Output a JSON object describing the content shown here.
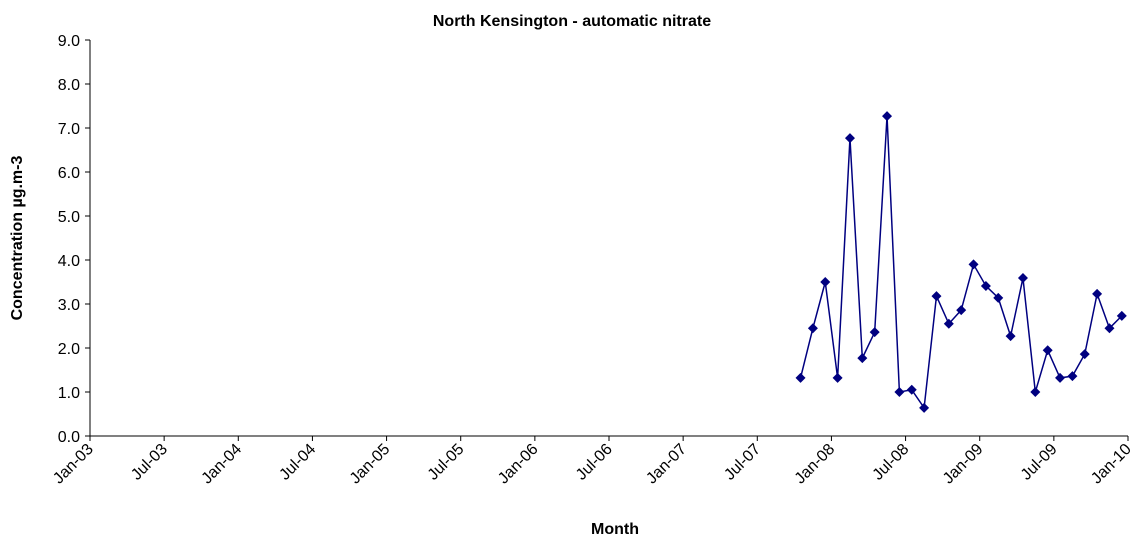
{
  "chart_data": {
    "type": "line",
    "title": "North Kensington - automatic nitrate",
    "x_label": "Month",
    "y_label": "Concentration  µg.m-3",
    "x": [
      "2007-10",
      "2007-11",
      "2007-12",
      "2008-01",
      "2008-02",
      "2008-03",
      "2008-04",
      "2008-05",
      "2008-06",
      "2008-07",
      "2008-08",
      "2008-09",
      "2008-10",
      "2008-11",
      "2008-12",
      "2009-01",
      "2009-02",
      "2009-03",
      "2009-04",
      "2009-05",
      "2009-06",
      "2009-07",
      "2009-08",
      "2009-09",
      "2009-10",
      "2009-11",
      "2009-12"
    ],
    "series": [
      {
        "name": "North Kensington",
        "color": "#000080",
        "values": [
          1.32,
          2.45,
          3.5,
          1.32,
          6.77,
          1.77,
          2.36,
          7.27,
          1.0,
          1.05,
          0.64,
          3.18,
          2.55,
          2.86,
          3.9,
          3.41,
          3.14,
          2.27,
          3.59,
          1.0,
          1.95,
          1.32,
          1.36,
          1.86,
          3.23,
          2.45,
          2.73
        ]
      }
    ],
    "xlim": [
      "2003-01",
      "2010-01"
    ],
    "xticks": [
      {
        "value": "2003-01",
        "label": "Jan-03"
      },
      {
        "value": "2003-07",
        "label": "Jul-03"
      },
      {
        "value": "2004-01",
        "label": "Jan-04"
      },
      {
        "value": "2004-07",
        "label": "Jul-04"
      },
      {
        "value": "2005-01",
        "label": "Jan-05"
      },
      {
        "value": "2005-07",
        "label": "Jul-05"
      },
      {
        "value": "2006-01",
        "label": "Jan-06"
      },
      {
        "value": "2006-07",
        "label": "Jul-06"
      },
      {
        "value": "2007-01",
        "label": "Jan-07"
      },
      {
        "value": "2007-07",
        "label": "Jul-07"
      },
      {
        "value": "2008-01",
        "label": "Jan-08"
      },
      {
        "value": "2008-07",
        "label": "Jul-08"
      },
      {
        "value": "2009-01",
        "label": "Jan-09"
      },
      {
        "value": "2009-07",
        "label": "Jul-09"
      },
      {
        "value": "2010-01",
        "label": "Jan-10"
      }
    ],
    "ylim": [
      0,
      9
    ],
    "yticks": [
      {
        "value": 0,
        "label": "0.0"
      },
      {
        "value": 1,
        "label": "1.0"
      },
      {
        "value": 2,
        "label": "2.0"
      },
      {
        "value": 3,
        "label": "3.0"
      },
      {
        "value": 4,
        "label": "4.0"
      },
      {
        "value": 5,
        "label": "5.0"
      },
      {
        "value": 6,
        "label": "6.0"
      },
      {
        "value": 7,
        "label": "7.0"
      },
      {
        "value": 8,
        "label": "8.0"
      },
      {
        "value": 9,
        "label": "9.0"
      }
    ],
    "grid": false,
    "marker": "diamond"
  }
}
